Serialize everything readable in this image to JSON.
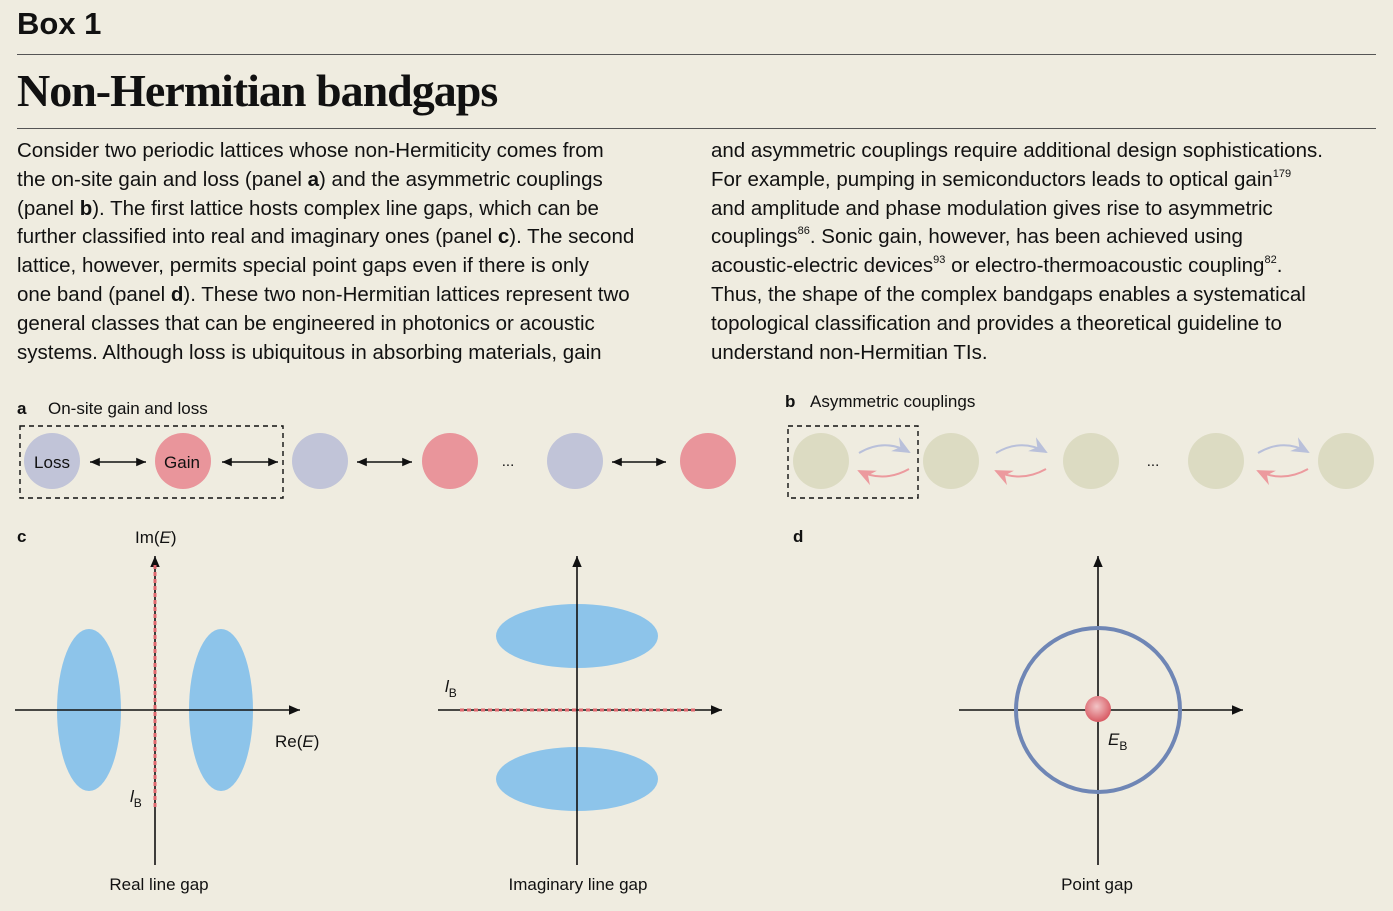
{
  "box_label": "Box 1",
  "title": "Non-Hermitian bandgaps",
  "text_columns": [
    [
      [
        {
          "t": "Consider two periodic lattices whose non-Hermiticity comes from"
        }
      ],
      [
        {
          "t": "the on-site gain and loss (panel "
        },
        {
          "t": "a",
          "b": true
        },
        {
          "t": ") and the asymmetric couplings"
        }
      ],
      [
        {
          "t": "(panel "
        },
        {
          "t": "b",
          "b": true
        },
        {
          "t": "). The first lattice hosts complex line gaps, which can be"
        }
      ],
      [
        {
          "t": "further classified into real and imaginary ones (panel "
        },
        {
          "t": "c",
          "b": true
        },
        {
          "t": "). The second"
        }
      ],
      [
        {
          "t": "lattice, however, permits special point gaps even if there is only"
        }
      ],
      [
        {
          "t": "one band (panel "
        },
        {
          "t": "d",
          "b": true
        },
        {
          "t": "). These two non-Hermitian lattices represent two"
        }
      ],
      [
        {
          "t": "general classes that can be engineered in photonics or acoustic"
        }
      ],
      [
        {
          "t": "systems. Although loss is ubiquitous in absorbing materials, gain"
        }
      ]
    ],
    [
      [
        {
          "t": "and asymmetric couplings require additional design sophistications."
        }
      ],
      [
        {
          "t": "For example, pumping in semiconductors leads to optical gain"
        },
        {
          "t": "179",
          "sup": true
        }
      ],
      [
        {
          "t": "and amplitude and phase modulation gives rise to asymmetric"
        }
      ],
      [
        {
          "t": "couplings"
        },
        {
          "t": "86",
          "sup": true
        },
        {
          "t": ". Sonic gain, however, has been achieved using"
        }
      ],
      [
        {
          "t": "acoustic-electric devices"
        },
        {
          "t": "93",
          "sup": true
        },
        {
          "t": " or electro-thermoacoustic coupling"
        },
        {
          "t": "82",
          "sup": true
        },
        {
          "t": "."
        }
      ],
      [
        {
          "t": "Thus, the shape of the complex bandgaps enables a systematical"
        }
      ],
      [
        {
          "t": "topological classification and provides a theoretical guideline to"
        }
      ],
      [
        {
          "t": "understand non-Hermitian TIs."
        }
      ]
    ]
  ],
  "panels": {
    "a": {
      "letter": "a",
      "title": "On-site gain and loss",
      "loss": "Loss",
      "gain": "Gain",
      "ellipsis": "..."
    },
    "b": {
      "letter": "b",
      "title": "Asymmetric couplings",
      "ellipsis": "..."
    },
    "c": {
      "letter": "c",
      "y_axis": "Im(",
      "y_axis_var": "E",
      "x_axis": "Re(",
      "x_axis_var": "E",
      "close": ")",
      "lb": "l",
      "lb_sub": "B",
      "caption_real": "Real line gap",
      "caption_imag": "Imaginary line gap"
    },
    "d": {
      "letter": "d",
      "eb": "E",
      "eb_sub": "B",
      "caption": "Point gap"
    }
  },
  "colors": {
    "loss": "#c1c4d8",
    "gain": "#e9959b",
    "coupling_site": "#dcdbc2",
    "band": "#8dc4ea",
    "gap_line": "#e0676e",
    "circle": "#6f86b5",
    "arrow_forward": "#b9c0da",
    "arrow_backward": "#ec9a9e"
  }
}
